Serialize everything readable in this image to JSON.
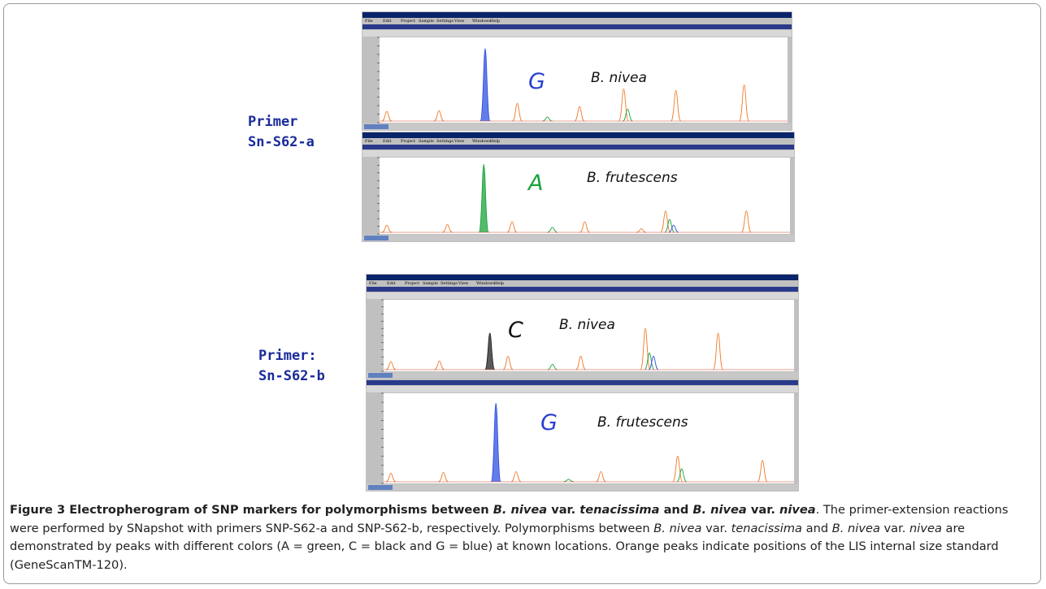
{
  "labels": [
    {
      "line1": "Primer",
      "line2": "Sn-S62-a"
    },
    {
      "line1": "Primer:",
      "line2": "Sn-S62-b"
    }
  ],
  "menu": [
    "File",
    "Edit",
    "Project",
    "Sample",
    "Settings",
    "View",
    "Windows",
    "Help"
  ],
  "panels": [
    {
      "base": "G",
      "base_color": "#2a3fd0",
      "species": "B. nivea"
    },
    {
      "base": "A",
      "base_color": "#1aa33a",
      "species": "B. frutescens"
    },
    {
      "base": "C",
      "base_color": "#111111",
      "species": "B. nivea"
    },
    {
      "base": "G",
      "base_color": "#2a3fd0",
      "species": "B. frutescens"
    }
  ],
  "caption": {
    "segments": [
      "Figure 3 Electropherogram of SNP markers for polymorphisms between ",
      "B. nivea",
      " var. ",
      "tenacissima",
      " and ",
      "B. nivea",
      " var. ",
      "nivea",
      ". The primer-extension reactions were performed by SNapshot with primers SNP-S62-a and SNP-S62-b, respectively. Polymorphisms between ",
      "B. nivea",
      " var. ",
      "tenacissima",
      " and ",
      "B. nivea",
      " var. ",
      "nivea",
      " are demonstrated by peaks with different colors (A = green, C = black and G = blue) at known locations. Orange peaks indicate positions of the LIS internal size standard (GeneScanTM-120)."
    ]
  }
}
